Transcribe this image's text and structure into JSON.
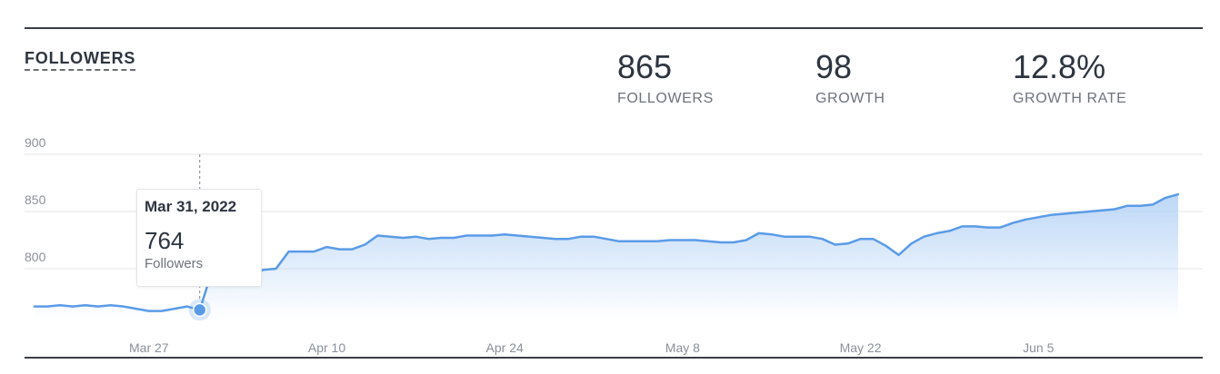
{
  "header": {
    "title": "FOLLOWERS"
  },
  "stats": [
    {
      "value": "865",
      "label": "FOLLOWERS"
    },
    {
      "value": "98",
      "label": "GROWTH"
    },
    {
      "value": "12.8%",
      "label": "GROWTH RATE"
    }
  ],
  "tooltip": {
    "date": "Mar 31, 2022",
    "value": "764",
    "label": "Followers"
  },
  "colors": {
    "line": "#5a9be8",
    "fill_top": "#b9d5f6",
    "grid": "#e4e6e9",
    "axis_text": "#8a9099"
  },
  "chart_data": {
    "type": "area",
    "xlabel": "",
    "ylabel": "",
    "ylim": [
      745,
      910
    ],
    "y_ticks": [
      800,
      850,
      900
    ],
    "x_ticks": [
      {
        "label": "Mar 27",
        "date": "2022-03-27"
      },
      {
        "label": "Apr 10",
        "date": "2022-04-10"
      },
      {
        "label": "Apr 24",
        "date": "2022-04-24"
      },
      {
        "label": "May 8",
        "date": "2022-05-08"
      },
      {
        "label": "May 22",
        "date": "2022-05-22"
      },
      {
        "label": "Jun 5",
        "date": "2022-06-05"
      }
    ],
    "highlight": {
      "date": "2022-03-31",
      "value": 764
    },
    "series": [
      {
        "x": [
          "2022-03-18",
          "2022-03-19",
          "2022-03-20",
          "2022-03-21",
          "2022-03-22",
          "2022-03-23",
          "2022-03-24",
          "2022-03-25",
          "2022-03-26",
          "2022-03-27",
          "2022-03-28",
          "2022-03-29",
          "2022-03-30",
          "2022-03-31",
          "2022-04-01",
          "2022-04-02",
          "2022-04-03",
          "2022-04-04",
          "2022-04-05",
          "2022-04-06",
          "2022-04-07",
          "2022-04-08",
          "2022-04-09",
          "2022-04-10",
          "2022-04-11",
          "2022-04-12",
          "2022-04-13",
          "2022-04-14",
          "2022-04-15",
          "2022-04-16",
          "2022-04-17",
          "2022-04-18",
          "2022-04-19",
          "2022-04-20",
          "2022-04-21",
          "2022-04-22",
          "2022-04-23",
          "2022-04-24",
          "2022-04-25",
          "2022-04-26",
          "2022-04-27",
          "2022-04-28",
          "2022-04-29",
          "2022-04-30",
          "2022-05-01",
          "2022-05-02",
          "2022-05-03",
          "2022-05-04",
          "2022-05-05",
          "2022-05-06",
          "2022-05-07",
          "2022-05-08",
          "2022-05-09",
          "2022-05-10",
          "2022-05-11",
          "2022-05-12",
          "2022-05-13",
          "2022-05-14",
          "2022-05-15",
          "2022-05-16",
          "2022-05-17",
          "2022-05-18",
          "2022-05-19",
          "2022-05-20",
          "2022-05-21",
          "2022-05-22",
          "2022-05-23",
          "2022-05-24",
          "2022-05-25",
          "2022-05-26",
          "2022-05-27",
          "2022-05-28",
          "2022-05-29",
          "2022-05-30",
          "2022-05-31",
          "2022-06-01",
          "2022-06-02",
          "2022-06-03",
          "2022-06-04",
          "2022-06-05",
          "2022-06-06",
          "2022-06-07",
          "2022-06-08",
          "2022-06-09",
          "2022-06-10",
          "2022-06-11",
          "2022-06-12",
          "2022-06-13",
          "2022-06-14",
          "2022-06-15",
          "2022-06-16"
        ],
        "values": [
          767,
          767,
          768,
          767,
          768,
          767,
          768,
          767,
          765,
          763,
          763,
          765,
          767,
          764,
          799,
          800,
          796,
          795,
          799,
          800,
          815,
          815,
          815,
          819,
          817,
          817,
          821,
          829,
          828,
          827,
          828,
          826,
          827,
          827,
          829,
          829,
          829,
          830,
          829,
          828,
          827,
          826,
          826,
          828,
          828,
          826,
          824,
          824,
          824,
          824,
          825,
          825,
          825,
          824,
          823,
          823,
          825,
          831,
          830,
          828,
          828,
          828,
          826,
          821,
          822,
          826,
          826,
          820,
          812,
          822,
          828,
          831,
          833,
          837,
          837,
          836,
          836,
          840,
          843,
          845,
          847,
          848,
          849,
          850,
          851,
          852,
          855,
          855,
          856,
          862,
          865
        ]
      }
    ]
  }
}
